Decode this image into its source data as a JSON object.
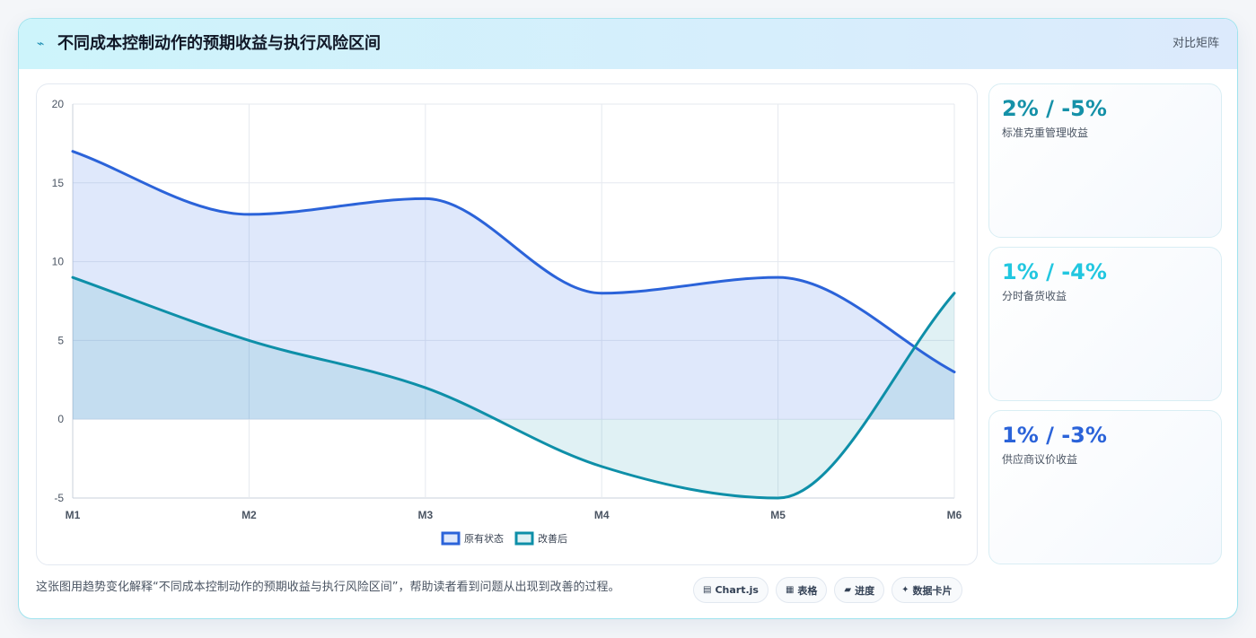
{
  "header": {
    "icon": "lightning-icon",
    "title": "不同成本控制动作的预期收益与执行风险区间",
    "link": "对比矩阵"
  },
  "chart_data": {
    "type": "area",
    "x": [
      "M1",
      "M2",
      "M3",
      "M4",
      "M5",
      "M6"
    ],
    "ylim": [
      -5,
      20
    ],
    "yticks": [
      -5,
      0,
      5,
      10,
      15,
      20
    ],
    "grid": true,
    "legend": "bottom",
    "series": [
      {
        "name": "原有状态",
        "values": [
          17,
          13,
          14,
          8,
          9,
          3
        ],
        "color": "#2b63d9",
        "fill": "rgba(59,110,230,0.16)"
      },
      {
        "name": "改善后",
        "values": [
          9,
          5,
          2,
          -3,
          -5,
          8
        ],
        "color": "#0e8fa8",
        "fill": "rgba(14,143,168,0.13)"
      }
    ]
  },
  "kpis": [
    {
      "value": "2% / -5%",
      "label": "标准克重管理收益",
      "color": "#1591a8"
    },
    {
      "value": "1% / -4%",
      "label": "分时备货收益",
      "color": "#22c7e0"
    },
    {
      "value": "1% / -3%",
      "label": "供应商议价收益",
      "color": "#2b63d9"
    }
  ],
  "footer": {
    "text": "这张图用趋势变化解释“不同成本控制动作的预期收益与执行风险区间”，帮助读者看到问题从出现到改善的过程。",
    "chips": [
      {
        "icon": "chart-icon",
        "glyph": "▤",
        "label": "Chart.js"
      },
      {
        "icon": "table-icon",
        "glyph": "▦",
        "label": "表格"
      },
      {
        "icon": "progress-icon",
        "glyph": "▰",
        "label": "进度"
      },
      {
        "icon": "card-icon",
        "glyph": "✦",
        "label": "数据卡片"
      }
    ]
  }
}
